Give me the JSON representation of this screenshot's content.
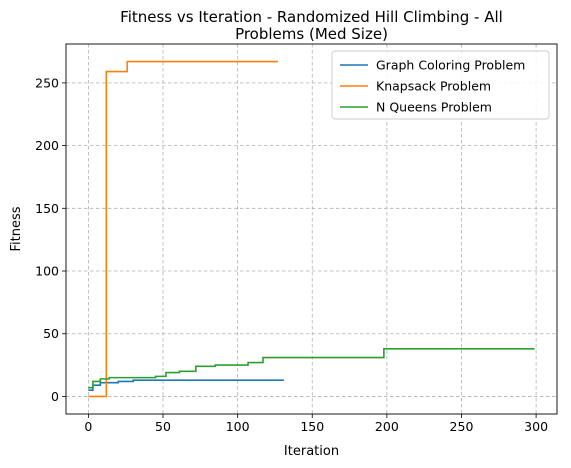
{
  "chart_data": {
    "type": "line",
    "title_lines": [
      "Fitness vs Iteration - Randomized Hill Climbing - All",
      "Problems (Med Size)"
    ],
    "xlabel": "Iteration",
    "ylabel": "Fitness",
    "xlim": [
      -15,
      314
    ],
    "ylim": [
      -14,
      281
    ],
    "xticks": [
      0,
      50,
      100,
      150,
      200,
      250,
      300
    ],
    "yticks": [
      0,
      50,
      100,
      150,
      200,
      250
    ],
    "grid": true,
    "legend_position": "top-right",
    "series": [
      {
        "name": "Graph Coloring Problem",
        "color": "#1f77b4",
        "points": [
          [
            0,
            5
          ],
          [
            3,
            5
          ],
          [
            3,
            9
          ],
          [
            8,
            9
          ],
          [
            8,
            11
          ],
          [
            20,
            11
          ],
          [
            20,
            12
          ],
          [
            30,
            12
          ],
          [
            30,
            13
          ],
          [
            131,
            13
          ]
        ]
      },
      {
        "name": "Knapsack Problem",
        "color": "#ff7f0e",
        "points": [
          [
            0,
            0
          ],
          [
            12,
            0
          ],
          [
            12,
            259
          ],
          [
            26,
            259
          ],
          [
            26,
            267
          ],
          [
            127,
            267
          ]
        ]
      },
      {
        "name": "N Queens Problem",
        "color": "#2ca02c",
        "points": [
          [
            0,
            7
          ],
          [
            3,
            7
          ],
          [
            3,
            12
          ],
          [
            8,
            12
          ],
          [
            8,
            14
          ],
          [
            14,
            14
          ],
          [
            14,
            15
          ],
          [
            45,
            15
          ],
          [
            45,
            16
          ],
          [
            52,
            16
          ],
          [
            52,
            19
          ],
          [
            61,
            19
          ],
          [
            61,
            20
          ],
          [
            72,
            20
          ],
          [
            72,
            24
          ],
          [
            85,
            24
          ],
          [
            85,
            25
          ],
          [
            107,
            25
          ],
          [
            107,
            27
          ],
          [
            117,
            27
          ],
          [
            117,
            31
          ],
          [
            198,
            31
          ],
          [
            198,
            38
          ],
          [
            299,
            38
          ]
        ]
      }
    ]
  }
}
